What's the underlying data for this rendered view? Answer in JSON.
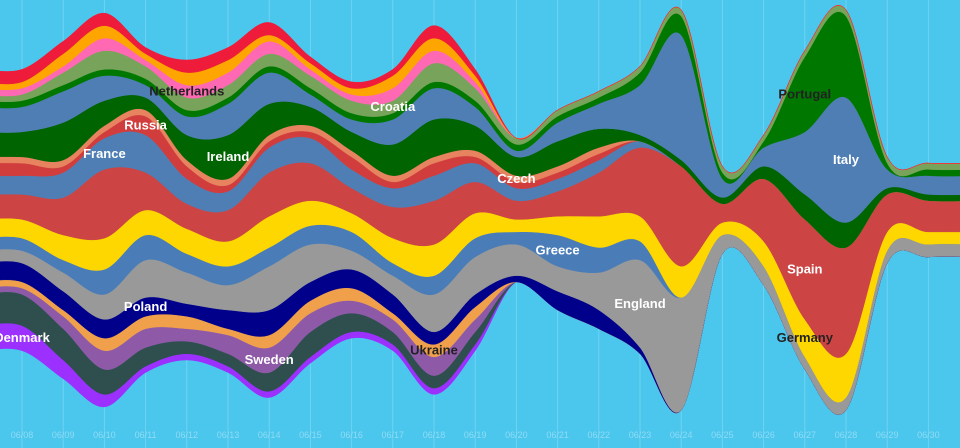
{
  "chart_data": {
    "type": "area",
    "subtype": "streamgraph",
    "background": "#4bc6ec",
    "dates": [
      "06/08",
      "06/09",
      "06/10",
      "06/11",
      "06/12",
      "06/13",
      "06/14",
      "06/15",
      "06/16",
      "06/17",
      "06/18",
      "06/19",
      "06/20",
      "06/21",
      "06/22",
      "06/23",
      "06/24",
      "06/25",
      "06/26",
      "06/27",
      "06/28",
      "06/29",
      "06/30"
    ],
    "grid": true,
    "series": [
      {
        "name": "Denmark",
        "color": "#9b30ff",
        "values": [
          4,
          3,
          2,
          1,
          1,
          1,
          1,
          1,
          1,
          1,
          1,
          1,
          0,
          0,
          0,
          0,
          0,
          0,
          0,
          0,
          0,
          0,
          0
        ]
      },
      {
        "name": "",
        "color": "#2f4f4f",
        "values": [
          5,
          5,
          4,
          3,
          2,
          2,
          3,
          4,
          3,
          2,
          2,
          2,
          0,
          0,
          0,
          0,
          0,
          0,
          0,
          0,
          0,
          0,
          0
        ]
      },
      {
        "name": "Sweden",
        "color": "#8e5aa8",
        "values": [
          1,
          2,
          3,
          3,
          2,
          3,
          4,
          3,
          2,
          2,
          3,
          2,
          0,
          0,
          0,
          0,
          0,
          0,
          0,
          0,
          0,
          0,
          0
        ]
      },
      {
        "name": "Ukraine",
        "color": "#f0a04b",
        "values": [
          1,
          1,
          2,
          2,
          2,
          1,
          2,
          2,
          2,
          1,
          2,
          2,
          0,
          0,
          0,
          0,
          0,
          0,
          0,
          0,
          0,
          0,
          0
        ]
      },
      {
        "name": "Poland",
        "color": "#00008b",
        "values": [
          3,
          3,
          3,
          3,
          2,
          3,
          4,
          3,
          3,
          3,
          2,
          2,
          1,
          3,
          3,
          1,
          0,
          0,
          0,
          0,
          0,
          0,
          0
        ]
      },
      {
        "name": "England",
        "color": "#999999",
        "values": [
          2,
          3,
          4,
          6,
          5,
          4,
          7,
          6,
          3,
          3,
          6,
          6,
          5,
          4,
          6,
          14,
          18,
          3,
          3,
          2,
          2,
          2,
          2
        ]
      },
      {
        "name": "Greece",
        "color": "#4a7db8",
        "values": [
          2,
          2,
          4,
          4,
          3,
          3,
          3,
          3,
          3,
          2,
          3,
          3,
          2,
          5,
          4,
          3,
          0,
          0,
          0,
          0,
          0,
          0,
          0
        ]
      },
      {
        "name": "Germany",
        "color": "#ffd700",
        "values": [
          3,
          4,
          5,
          4,
          4,
          4,
          5,
          4,
          3,
          4,
          5,
          4,
          2,
          3,
          5,
          4,
          5,
          2,
          4,
          6,
          7,
          3,
          2
        ]
      },
      {
        "name": "Spain",
        "color": "#cc4444",
        "values": [
          4,
          6,
          11,
          6,
          4,
          5,
          7,
          6,
          4,
          5,
          7,
          5,
          3,
          4,
          7,
          11,
          16,
          3,
          10,
          16,
          17,
          6,
          5
        ]
      },
      {
        "name": "France",
        "color": "#4f7eb5",
        "values": [
          3,
          4,
          5,
          6,
          4,
          3,
          4,
          4,
          3,
          3,
          4,
          3,
          2,
          2,
          2,
          1,
          0,
          0,
          0,
          0,
          0,
          0,
          0
        ]
      },
      {
        "name": "Russia",
        "color": "#d13d3d",
        "values": [
          2,
          1,
          1,
          3,
          2,
          1,
          1,
          1,
          2,
          1,
          2,
          1,
          1,
          1,
          1,
          0,
          0,
          0,
          0,
          0,
          0,
          0,
          0
        ]
      },
      {
        "name": "Czech",
        "color": "#e7835e",
        "values": [
          1,
          1,
          1,
          1,
          1,
          1,
          1,
          1,
          1,
          1,
          1,
          1,
          1,
          1,
          1,
          0,
          0,
          0,
          0,
          0,
          0,
          0,
          0
        ]
      },
      {
        "name": "Ireland",
        "color": "#006400",
        "values": [
          4,
          6,
          4,
          2,
          4,
          7,
          5,
          3,
          3,
          5,
          6,
          4,
          3,
          4,
          3,
          1,
          1,
          1,
          2,
          4,
          4,
          1,
          1
        ]
      },
      {
        "name": "Italy",
        "color": "#4f7eb5",
        "values": [
          4,
          5,
          4,
          2,
          3,
          5,
          5,
          2,
          2,
          4,
          5,
          3,
          1,
          3,
          4,
          8,
          20,
          3,
          3,
          10,
          20,
          3,
          3
        ]
      },
      {
        "name": "Portugal",
        "color": "#007800",
        "values": [
          1,
          1,
          1,
          1,
          1,
          1,
          1,
          1,
          1,
          1,
          1,
          1,
          1,
          1,
          1,
          2,
          3,
          1,
          1,
          12,
          13,
          1,
          1
        ]
      },
      {
        "name": "Croatia",
        "color": "#77a35a",
        "values": [
          1,
          2,
          3,
          2,
          2,
          2,
          2,
          2,
          2,
          2,
          3,
          2,
          1,
          1,
          1,
          1,
          1,
          1,
          1,
          1,
          1,
          1,
          1
        ]
      },
      {
        "name": "Netherlands",
        "color": "#ff69b4",
        "values": [
          1,
          1,
          2,
          1,
          2,
          2,
          2,
          1,
          1,
          2,
          2,
          1,
          0,
          0,
          0,
          0,
          0,
          0,
          0,
          0,
          0,
          0,
          0
        ]
      },
      {
        "name": "",
        "color": "#ffa500",
        "values": [
          1,
          2,
          2,
          1,
          2,
          2,
          1,
          1,
          1,
          2,
          2,
          1,
          0,
          0,
          0,
          0,
          0,
          0,
          0,
          0,
          0,
          0,
          0
        ]
      },
      {
        "name": "",
        "color": "#ee1b3b",
        "values": [
          2,
          2,
          2,
          1,
          2,
          2,
          2,
          1,
          1,
          1,
          2,
          1,
          0,
          0,
          0,
          0,
          0,
          0,
          0,
          0,
          0,
          0,
          0
        ]
      }
    ],
    "labels": [
      {
        "text": "Denmark",
        "series": 0,
        "date": "06/08",
        "color": "#ffffff"
      },
      {
        "text": "Poland",
        "series": 4,
        "date": "06/11",
        "color": "#ffffff"
      },
      {
        "text": "Sweden",
        "series": 2,
        "date": "06/14",
        "color": "#ffffff"
      },
      {
        "text": "Ukraine",
        "series": 3,
        "date": "06/18",
        "color": "#222222"
      },
      {
        "text": "Greece",
        "series": 6,
        "date": "06/21",
        "color": "#ffffff"
      },
      {
        "text": "England",
        "series": 5,
        "date": "06/23",
        "color": "#ffffff"
      },
      {
        "text": "Germany",
        "series": 7,
        "date": "06/27",
        "color": "#222222"
      },
      {
        "text": "Spain",
        "series": 8,
        "date": "06/27",
        "color": "#ffffff"
      },
      {
        "text": "France",
        "series": 9,
        "date": "06/10",
        "color": "#ffffff"
      },
      {
        "text": "Russia",
        "series": 10,
        "date": "06/11",
        "color": "#ffffff"
      },
      {
        "text": "Czech",
        "series": 11,
        "date": "06/20",
        "color": "#ffffff"
      },
      {
        "text": "Ireland",
        "series": 12,
        "date": "06/13",
        "color": "#ffffff"
      },
      {
        "text": "Italy",
        "series": 13,
        "date": "06/28",
        "color": "#ffffff"
      },
      {
        "text": "Portugal",
        "series": 14,
        "date": "06/27",
        "color": "#222222"
      },
      {
        "text": "Croatia",
        "series": 15,
        "date": "06/17",
        "color": "#ffffff"
      },
      {
        "text": "Netherlands",
        "series": 16,
        "date": "06/12",
        "color": "#222222"
      }
    ]
  }
}
